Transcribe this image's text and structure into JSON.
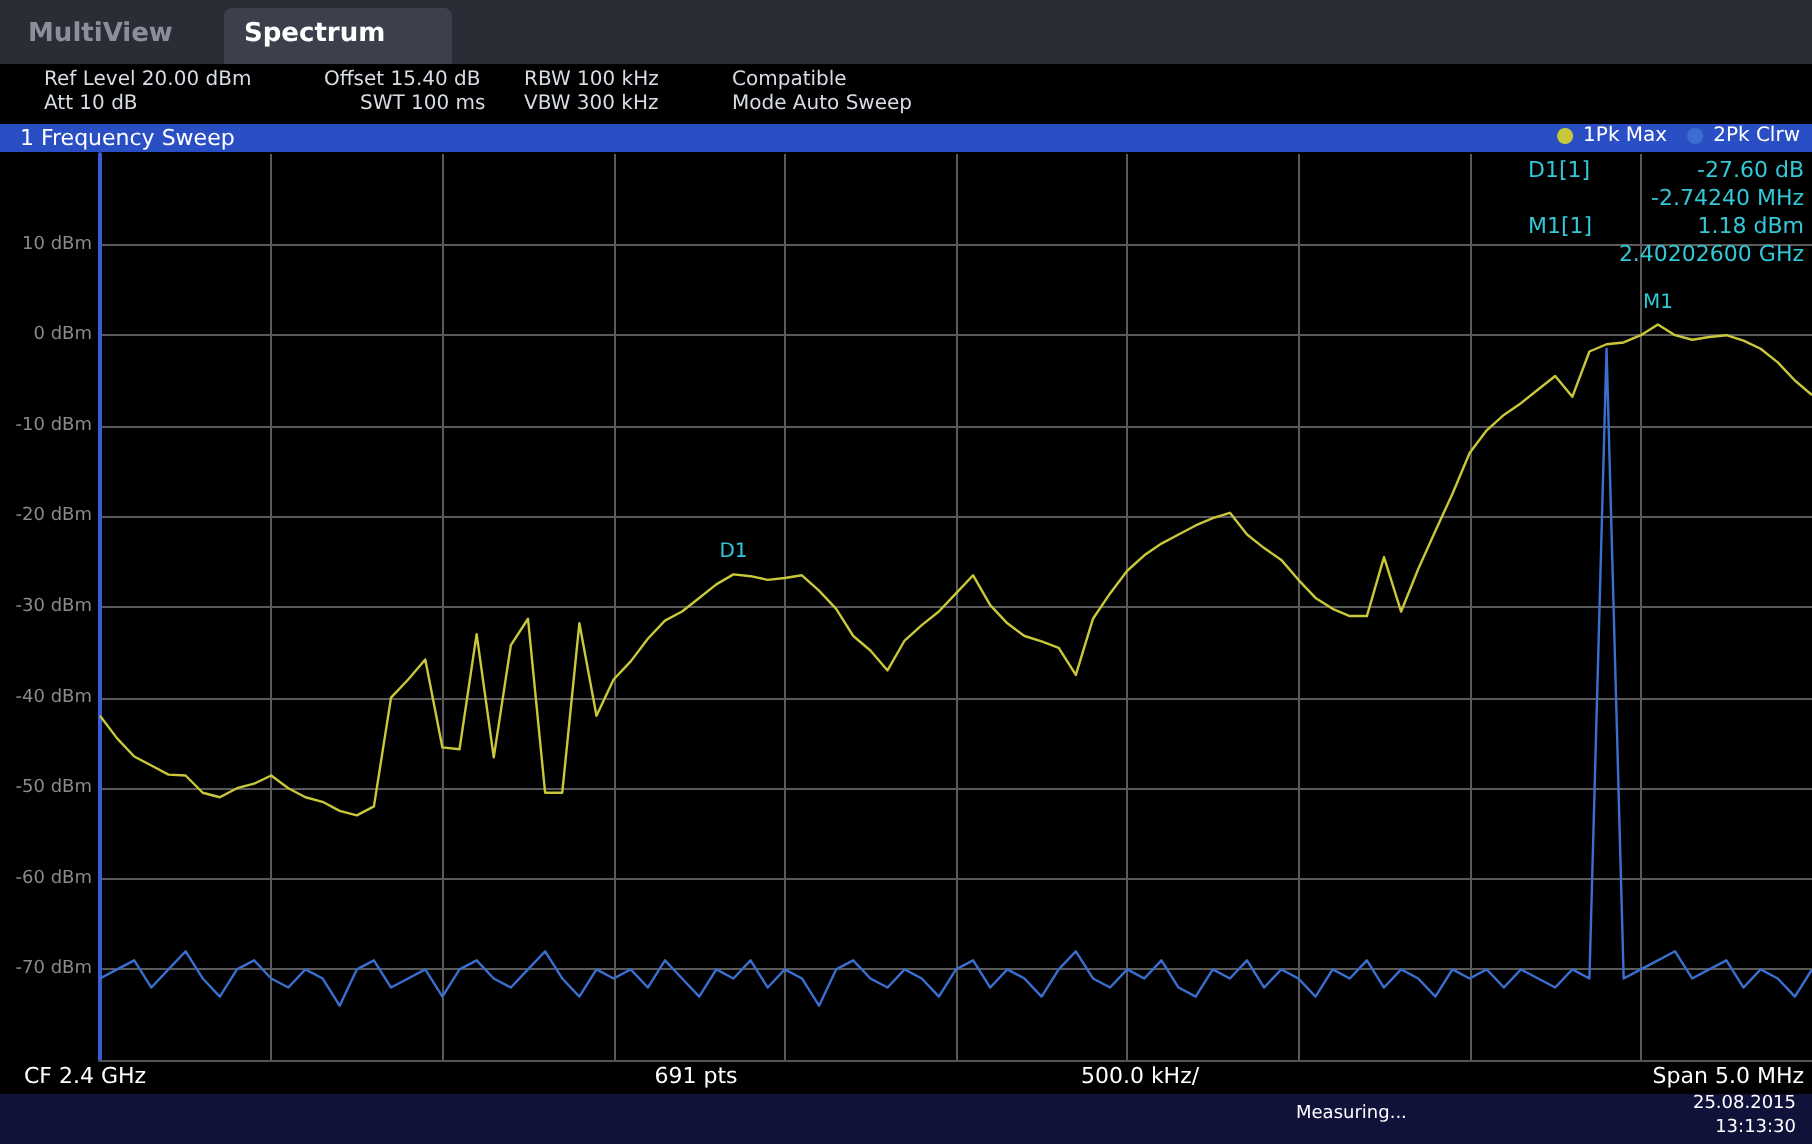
{
  "chart_data": {
    "type": "line",
    "title": "1 Frequency Sweep",
    "categories": [
      null,
      null,
      null,
      null,
      null,
      null,
      null,
      null,
      null,
      null,
      null,
      null,
      null,
      null,
      null,
      null,
      null,
      null,
      null,
      null,
      null,
      null,
      null,
      null,
      null,
      null,
      null,
      null,
      null,
      null,
      null,
      null,
      null,
      null,
      null,
      null,
      null,
      null,
      null,
      null,
      null,
      null,
      null,
      null,
      null,
      null,
      null,
      null,
      null,
      null,
      null,
      null,
      null,
      null,
      null,
      null,
      null,
      null,
      null,
      null,
      null,
      null,
      null,
      null,
      null,
      null,
      null,
      null,
      null,
      null,
      null,
      null,
      null,
      null,
      null,
      null,
      null,
      null,
      null,
      null,
      null,
      null,
      null,
      null,
      null,
      null,
      null,
      null,
      null,
      null,
      null,
      null,
      null,
      null,
      null,
      null,
      null,
      null,
      null,
      null,
      null
    ],
    "series": [
      {
        "name": "1Pk Max",
        "color": "#c8c83a",
        "values": [
          -42,
          -44.5,
          -46.5,
          -47.5,
          -48.5,
          -48.6,
          -50.5,
          -51,
          -50,
          -49.5,
          -48.6,
          -50,
          -51,
          -51.5,
          -52.5,
          -53,
          -52,
          -40,
          -38,
          -35.8,
          -45.5,
          -45.7,
          -33,
          -46.6,
          -34.2,
          -31.3,
          -50.5,
          -50.5,
          -31.8,
          -42,
          -38,
          -36,
          -33.5,
          -31.5,
          -30.5,
          -29,
          -27.5,
          -26.4,
          -26.6,
          -27,
          -26.8,
          -26.5,
          -28.2,
          -30.2,
          -33.2,
          -34.8,
          -37,
          -33.7,
          -32,
          -30.5,
          -28.5,
          -26.5,
          -29.8,
          -31.8,
          -33.2,
          -33.8,
          -34.5,
          -37.5,
          -31.3,
          -28.5,
          -26,
          -24.3,
          -23,
          -22,
          -21,
          -20.2,
          -19.6,
          -22,
          -23.5,
          -24.8,
          -27,
          -29,
          -30.2,
          -31,
          -31,
          -24.5,
          -30.5,
          -25.8,
          -21.6,
          -17.5,
          -13,
          -10.5,
          -8.8,
          -7.5,
          -6,
          -4.5,
          -6.8,
          -1.8,
          -1,
          -0.8,
          0,
          1.18,
          0,
          -0.5,
          -0.2,
          0,
          -0.6,
          -1.5,
          -3,
          -5,
          -6.6
        ],
        "value_labels": [
          null,
          null,
          null,
          null,
          null,
          null,
          null,
          null,
          null,
          null,
          null,
          null,
          null,
          null,
          null,
          null,
          null,
          null,
          null,
          null,
          null,
          null,
          null,
          null,
          null,
          null,
          null,
          null,
          null,
          null,
          null,
          null,
          null,
          null,
          null,
          null,
          null,
          "D1",
          null,
          null,
          null,
          null,
          null,
          null,
          null,
          null,
          null,
          null,
          null,
          null,
          null,
          null,
          null,
          null,
          null,
          null,
          null,
          null,
          null,
          null,
          null,
          null,
          null,
          null,
          null,
          null,
          null,
          null,
          null,
          null,
          null,
          null,
          null,
          null,
          null,
          null,
          null,
          null,
          null,
          null,
          null,
          null,
          null,
          null,
          null,
          null,
          null,
          null,
          null,
          null,
          null,
          "M1",
          null,
          null,
          null,
          null,
          null,
          null,
          null,
          null,
          null
        ]
      },
      {
        "name": "2Pk Clrw",
        "color": "#3a6fd0",
        "values": [
          -71,
          -70,
          -69,
          -72,
          -70,
          -68,
          -71,
          -73,
          -70,
          -69,
          -71,
          -72,
          -70,
          -71,
          -74,
          -70,
          -69,
          -72,
          -71,
          -70,
          -73,
          -70,
          -69,
          -71,
          -72,
          -70,
          -68,
          -71,
          -73,
          -70,
          -71,
          -70,
          -72,
          -69,
          -71,
          -73,
          -70,
          -71,
          -69,
          -72,
          -70,
          -71,
          -74,
          -70,
          -69,
          -71,
          -72,
          -70,
          -71,
          -73,
          -70,
          -69,
          -72,
          -70,
          -71,
          -73,
          -70,
          -68,
          -71,
          -72,
          -70,
          -71,
          -69,
          -72,
          -73,
          -70,
          -71,
          -69,
          -72,
          -70,
          -71,
          -73,
          -70,
          -71,
          -69,
          -72,
          -70,
          -71,
          -73,
          -70,
          -71,
          -70,
          -72,
          -70,
          -71,
          -72,
          -70,
          -71,
          -1.5,
          -71,
          -70,
          -69,
          -68,
          -71,
          -70,
          -69,
          -72,
          -70,
          -71,
          -73,
          -70
        ]
      }
    ],
    "ylim": [
      -80,
      20
    ],
    "yticks": [
      {
        "value": 10,
        "label": "10 dBm"
      },
      {
        "value": 0,
        "label": "0 dBm"
      },
      {
        "value": -10,
        "label": "-10 dBm"
      },
      {
        "value": -20,
        "label": "-20 dBm"
      },
      {
        "value": -30,
        "label": "-30 dBm"
      },
      {
        "value": -40,
        "label": "-40 dBm"
      },
      {
        "value": -50,
        "label": "-50 dBm"
      },
      {
        "value": -60,
        "label": "-60 dBm"
      },
      {
        "value": -70,
        "label": "-70 dBm"
      }
    ],
    "tick_labels": "y",
    "grid": true,
    "legend": "top right",
    "marker": "none",
    "line_style": "solid",
    "annotations": [
      "MultiView",
      "Spectrum",
      "Ref Level 20.00 dBm",
      "Offset 15.40 dB",
      "RBW 100 kHz",
      "Compatible",
      "Att 10 dB",
      "SWT 100 ms",
      "VBW 300 kHz",
      "Mode Auto Sweep",
      "D1[1]",
      "-27.60 dB",
      "-2.74240 MHz",
      "M1[1]",
      "1.18 dBm",
      "2.40202600 GHz",
      "CF 2.4 GHz",
      "691 pts",
      "500.0 kHz/",
      "Span 5.0 MHz",
      "Measuring...",
      "25.08.2015",
      "13:13:30"
    ]
  }
}
